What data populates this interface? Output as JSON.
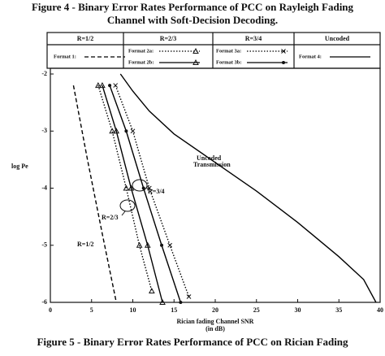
{
  "chart_data": {
    "type": "line",
    "title": [
      "Figure 4 -  Binary Error Rates Performance of PCC on Rayleigh Fading",
      "Channel with Soft-Decision Decoding."
    ],
    "caption": "Figure 5 -  Binary Error Rates Performance of PCC on Rician Fading",
    "legend_headers": [
      "R=1/2",
      "R=2/3",
      "R=3/4",
      "Uncoded"
    ],
    "xlabel": [
      "Rician fading Channel SNR",
      "(in dB)"
    ],
    "ylabel": "log Pe",
    "xlim": [
      0,
      40
    ],
    "xticks": [
      0,
      5,
      10,
      15,
      20,
      25,
      30,
      35,
      40
    ],
    "ylim": [
      -6,
      -1.9
    ],
    "yticks": [
      -2,
      -3,
      -4,
      -5,
      -6
    ],
    "annotations": [
      "Uncoded",
      "Transmission",
      "R=3/4",
      "R=2/3",
      "R=1/2"
    ],
    "series": [
      {
        "name": "Format 1:",
        "color": "#000000",
        "dash": "dashed",
        "marker": "none",
        "x": [
          2.8,
          4.5,
          6.3,
          8
        ],
        "values": [
          -2.2,
          -3.5,
          -4.8,
          -6
        ]
      },
      {
        "name": "Format 2a:",
        "color": "#000000",
        "dash": "dotted",
        "marker": "triangle",
        "x": [
          5.8,
          7.5,
          9.2,
          10.8,
          12.3
        ],
        "values": [
          -2.2,
          -3,
          -4,
          -5,
          -5.8
        ]
      },
      {
        "name": "Format 2b:",
        "color": "#000000",
        "dash": "solid",
        "marker": "triangle",
        "x": [
          6.3,
          8,
          9.8,
          11.8,
          13.6
        ],
        "values": [
          -2.2,
          -3,
          -4,
          -5,
          -6
        ]
      },
      {
        "name": "Format 3a:",
        "color": "#000000",
        "dash": "dotted",
        "marker": "x",
        "x": [
          7.9,
          10,
          12,
          14.5,
          16.8
        ],
        "values": [
          -2.2,
          -3,
          -4,
          -5,
          -5.9
        ]
      },
      {
        "name": "Format 3b:",
        "color": "#000000",
        "dash": "solid",
        "marker": "dot",
        "x": [
          7.2,
          9.2,
          11.3,
          13.5,
          15.8
        ],
        "values": [
          -2.2,
          -3,
          -4,
          -5,
          -6
        ]
      },
      {
        "name": "Format 4:",
        "color": "#000000",
        "dash": "solid",
        "marker": "none",
        "x": [
          8.5,
          10,
          12,
          15,
          20,
          25,
          30,
          35,
          38,
          39.5
        ],
        "values": [
          -2,
          -2.3,
          -2.65,
          -3.05,
          -3.55,
          -4.05,
          -4.6,
          -5.2,
          -5.6,
          -6
        ]
      }
    ]
  }
}
